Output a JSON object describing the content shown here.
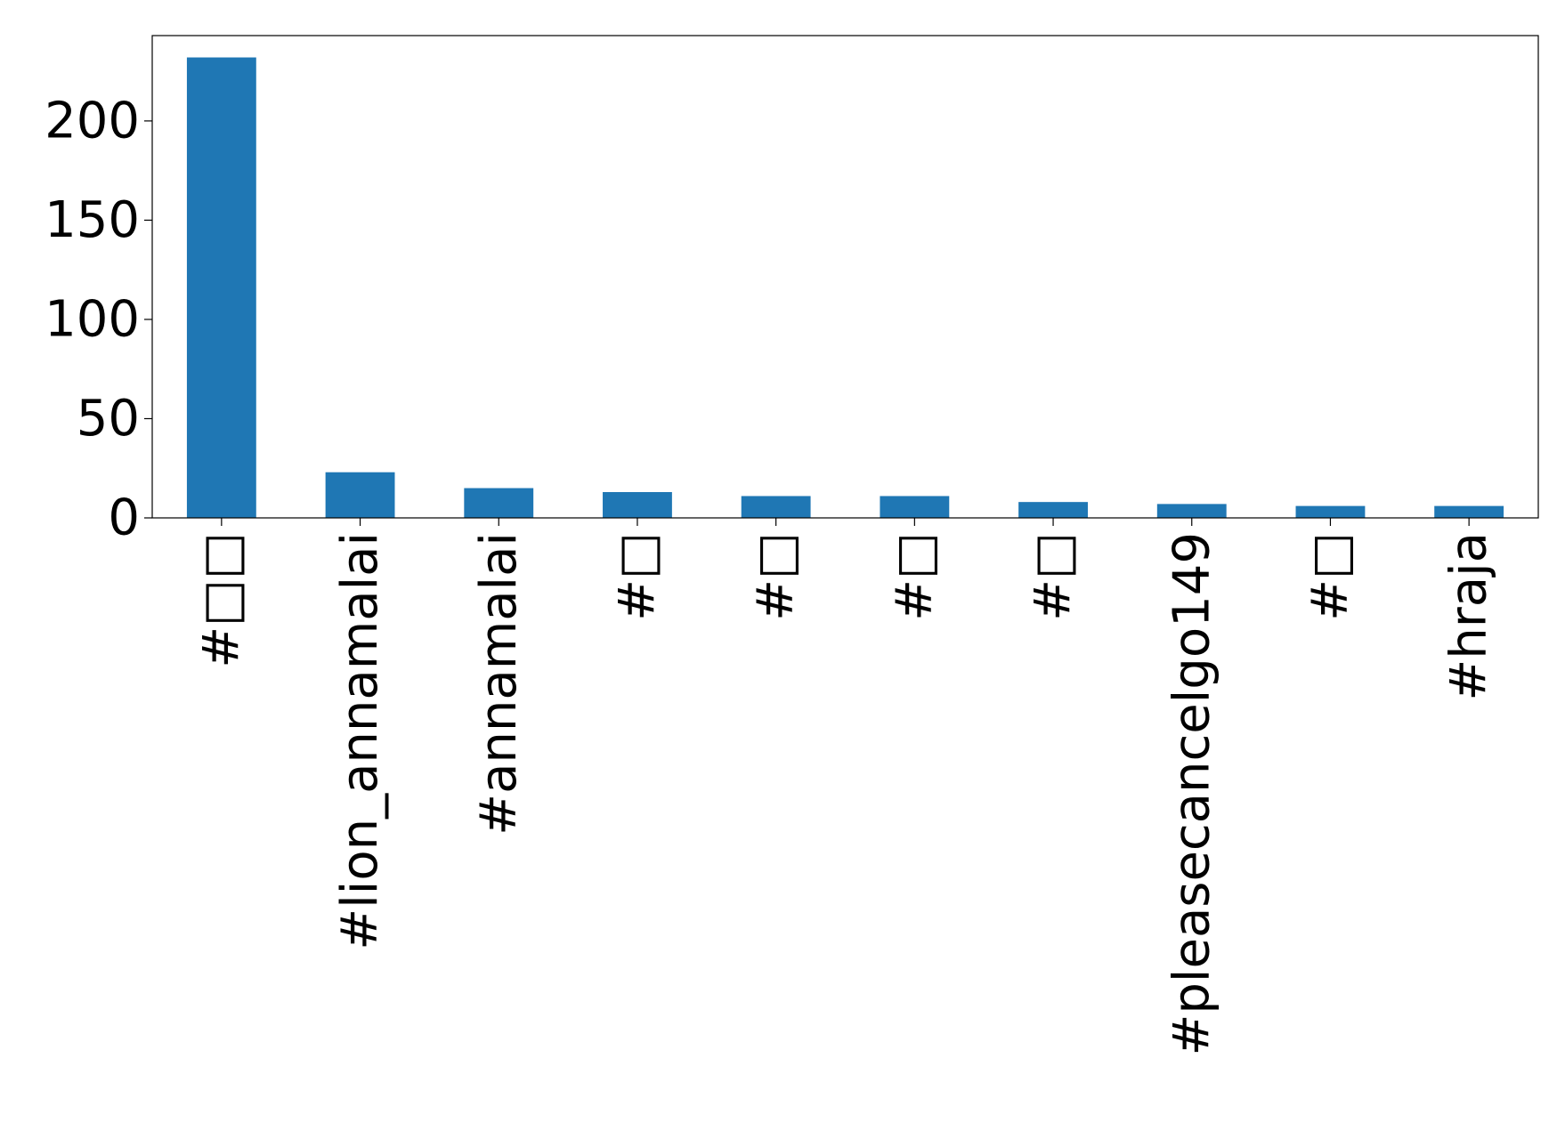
{
  "chart_data": {
    "type": "bar",
    "title": "",
    "xlabel": "",
    "ylabel": "",
    "categories": [
      "#□□",
      "#lion_annamalai",
      "#annamalai",
      "#□",
      "#□",
      "#□",
      "#□",
      "#pleasecancelgo149",
      "#□",
      "#hraja"
    ],
    "values": [
      232,
      23,
      15,
      13,
      11,
      11,
      8,
      7,
      6,
      6
    ],
    "ylim": [
      0,
      243
    ],
    "yticks": [
      0,
      50,
      100,
      150,
      200
    ],
    "ytick_labels": [
      "0",
      "50",
      "100",
      "150",
      "200"
    ],
    "grid": false,
    "legend": "none",
    "bar_color": "#1f77b4"
  }
}
